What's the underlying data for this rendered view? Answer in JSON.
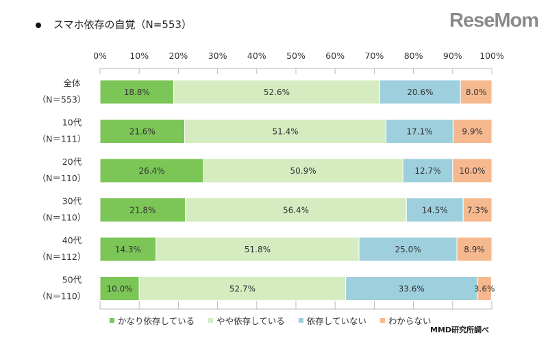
{
  "title": "スマホ依存の自覚（N=553）",
  "logo": "ReseMom",
  "source": "MMD研究所調べ",
  "chart_data": {
    "type": "bar",
    "orientation": "horizontal",
    "stacked": true,
    "title": "スマホ依存の自覚（N=553）",
    "xlim": [
      0,
      100
    ],
    "x_ticks": [
      "0%",
      "10%",
      "20%",
      "30%",
      "40%",
      "50%",
      "60%",
      "70%",
      "80%",
      "90%",
      "100%"
    ],
    "categories": [
      [
        "全体",
        "（N＝553）"
      ],
      [
        "10代",
        "（N＝111）"
      ],
      [
        "20代",
        "（N＝110）"
      ],
      [
        "30代",
        "（N＝110）"
      ],
      [
        "40代",
        "（N＝112）"
      ],
      [
        "50代",
        "（N＝110）"
      ]
    ],
    "series": [
      {
        "name": "かなり依存している",
        "color": "#7cc557",
        "values": [
          18.8,
          21.6,
          26.4,
          21.8,
          14.3,
          10.0
        ]
      },
      {
        "name": "やや依存している",
        "color": "#d5ecc0",
        "values": [
          52.6,
          51.4,
          50.9,
          56.4,
          51.8,
          52.7
        ]
      },
      {
        "name": "依存していない",
        "color": "#9ecfdd",
        "values": [
          20.6,
          17.1,
          12.7,
          14.5,
          25.0,
          33.6
        ]
      },
      {
        "name": "わからない",
        "color": "#f6b98f",
        "values": [
          8.0,
          9.9,
          10.0,
          7.3,
          8.9,
          3.6
        ]
      }
    ],
    "legend": "bottom",
    "grid": false
  }
}
